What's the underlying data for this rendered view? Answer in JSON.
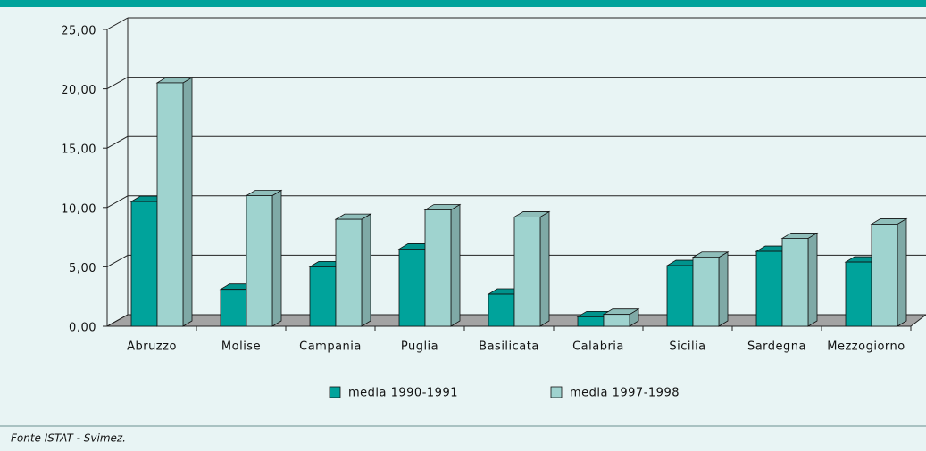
{
  "chart_data": {
    "type": "bar3d",
    "categories": [
      "Abruzzo",
      "Molise",
      "Campania",
      "Puglia",
      "Basilicata",
      "Calabria",
      "Sicilia",
      "Sardegna",
      "Mezzogiorno"
    ],
    "series": [
      {
        "name": "media 1990-1991",
        "color": "#00a39b",
        "values": [
          10.5,
          3.1,
          5.0,
          6.5,
          2.7,
          0.8,
          5.1,
          6.3,
          5.4
        ]
      },
      {
        "name": "media 1997-1998",
        "color": "#9fd3cf",
        "values": [
          20.5,
          11.0,
          9.0,
          9.8,
          9.2,
          1.0,
          5.8,
          7.4,
          8.6
        ]
      }
    ],
    "ylim": [
      0,
      25
    ],
    "yticks": [
      {
        "value": 0,
        "label": "0,00"
      },
      {
        "value": 5,
        "label": "5,00"
      },
      {
        "value": 10,
        "label": "10,00"
      },
      {
        "value": 15,
        "label": "15,00"
      },
      {
        "value": 20,
        "label": "20,00"
      },
      {
        "value": 25,
        "label": "25,00"
      }
    ],
    "grid": true,
    "legend": "bottom",
    "source": "Fonte ISTAT - Svimez."
  }
}
